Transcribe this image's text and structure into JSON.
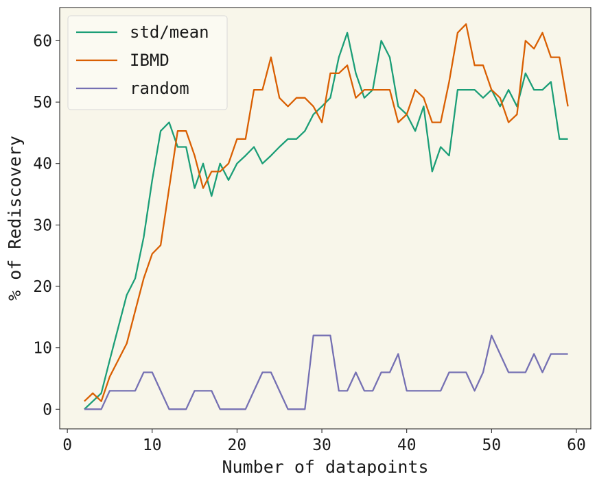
{
  "chart_data": {
    "type": "line",
    "title": "",
    "xlabel": "Number of datapoints",
    "ylabel": "% of Rediscovery",
    "xlim": [
      -0.9,
      61.7
    ],
    "ylim": [
      -3.2,
      65.4
    ],
    "xticks": [
      0,
      10,
      20,
      30,
      40,
      50,
      60
    ],
    "yticks": [
      0,
      10,
      20,
      30,
      40,
      50,
      60
    ],
    "grid": false,
    "legend_position": "top-left",
    "background": "#f8f6ea",
    "series": [
      {
        "name": "std/mean",
        "color": "#1b9e77",
        "x": [
          2,
          3,
          4,
          5,
          6,
          7,
          8,
          9,
          10,
          11,
          12,
          13,
          14,
          15,
          16,
          17,
          18,
          19,
          20,
          21,
          22,
          23,
          24,
          25,
          26,
          27,
          28,
          29,
          30,
          31,
          32,
          33,
          34,
          35,
          36,
          37,
          38,
          39,
          40,
          41,
          42,
          43,
          44,
          45,
          46,
          47,
          48,
          49,
          50,
          51,
          52,
          53,
          54,
          55,
          56,
          57,
          58,
          59
        ],
        "y": [
          0,
          1.3,
          2.6,
          8,
          13.3,
          18.6,
          21.3,
          28,
          37.3,
          45.3,
          46.7,
          42.7,
          42.7,
          36,
          40,
          34.7,
          40,
          37.3,
          40,
          41.3,
          42.7,
          40,
          41.3,
          42.7,
          44,
          44,
          45.3,
          48,
          49.3,
          50.7,
          57.3,
          61.3,
          54.7,
          50.7,
          52,
          60,
          57.3,
          49.3,
          48,
          45.3,
          49.3,
          38.7,
          42.7,
          41.3,
          52,
          52,
          52,
          50.7,
          52,
          49.3,
          52,
          49.3,
          54.7,
          52,
          52,
          53.3,
          44,
          44
        ]
      },
      {
        "name": "IBMD",
        "color": "#d95f02",
        "x": [
          2,
          3,
          4,
          5,
          6,
          7,
          8,
          9,
          10,
          11,
          12,
          13,
          14,
          15,
          16,
          17,
          18,
          19,
          20,
          21,
          22,
          23,
          24,
          25,
          26,
          27,
          28,
          29,
          30,
          31,
          32,
          33,
          34,
          35,
          36,
          37,
          38,
          39,
          40,
          41,
          42,
          43,
          44,
          45,
          46,
          47,
          48,
          49,
          50,
          51,
          52,
          53,
          54,
          55,
          56,
          57,
          58,
          59
        ],
        "y": [
          1.3,
          2.6,
          1.3,
          5.3,
          8,
          10.7,
          16,
          21.3,
          25.3,
          26.7,
          36,
          45.3,
          45.3,
          41.3,
          36,
          38.7,
          38.7,
          40,
          44,
          44,
          52,
          52,
          57.3,
          50.7,
          49.3,
          50.7,
          50.7,
          49.3,
          46.7,
          54.7,
          54.7,
          56,
          50.7,
          52,
          52,
          52,
          52,
          46.7,
          48,
          52,
          50.7,
          46.7,
          46.7,
          53.3,
          61.3,
          62.7,
          56,
          56,
          52,
          50.7,
          46.7,
          48,
          60,
          58.7,
          61.3,
          57.3,
          57.3,
          49.3
        ]
      },
      {
        "name": "random",
        "color": "#7570b3",
        "x": [
          2,
          3,
          4,
          5,
          6,
          7,
          8,
          9,
          10,
          11,
          12,
          13,
          14,
          15,
          16,
          17,
          18,
          19,
          20,
          21,
          22,
          23,
          24,
          25,
          26,
          27,
          28,
          29,
          30,
          31,
          32,
          33,
          34,
          35,
          36,
          37,
          38,
          39,
          40,
          41,
          42,
          43,
          44,
          45,
          46,
          47,
          48,
          49,
          50,
          51,
          52,
          53,
          54,
          55,
          56,
          57,
          58,
          59
        ],
        "y": [
          0,
          0,
          0,
          3,
          3,
          3,
          3,
          6,
          6,
          3,
          0,
          0,
          0,
          3,
          3,
          3,
          0,
          0,
          0,
          0,
          3,
          6,
          6,
          3,
          0,
          0,
          0,
          12,
          12,
          12,
          3,
          3,
          6,
          3,
          3,
          6,
          6,
          9,
          3,
          3,
          3,
          3,
          3,
          6,
          6,
          6,
          3,
          6,
          12,
          9,
          6,
          6,
          6,
          9,
          6,
          9,
          9,
          9
        ]
      }
    ]
  }
}
